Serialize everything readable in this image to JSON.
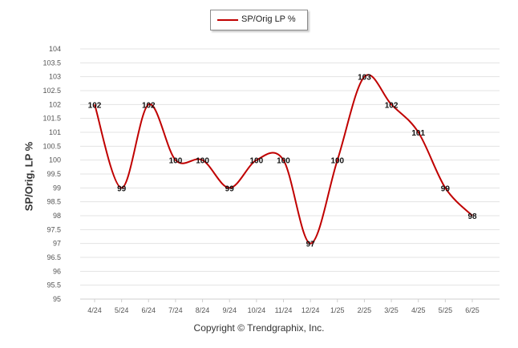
{
  "chart_data": {
    "type": "line",
    "categories": [
      "4/24",
      "5/24",
      "6/24",
      "7/24",
      "8/24",
      "9/24",
      "10/24",
      "11/24",
      "12/24",
      "1/25",
      "2/25",
      "3/25",
      "4/25",
      "5/25",
      "6/25"
    ],
    "series": [
      {
        "name": "SP/Orig LP %",
        "values": [
          102,
          99,
          102,
          100,
          100,
          99,
          100,
          100,
          97,
          100,
          103,
          102,
          101,
          99,
          98
        ],
        "data_labels": [
          "102",
          "99",
          "102",
          "100",
          "100",
          "99",
          "100",
          "100",
          "97",
          "100",
          "103",
          "102",
          "101",
          "99",
          "98"
        ]
      }
    ],
    "ylabel": "SP/Orig, LP %",
    "ylim": [
      95,
      104
    ],
    "yticks": [
      "95",
      "95.5",
      "96",
      "96.5",
      "97",
      "97.5",
      "98",
      "98.5",
      "99",
      "99.5",
      "100",
      "100.5",
      "101",
      "101.5",
      "102",
      "102.5",
      "103",
      "103.5",
      "104"
    ],
    "grid": true,
    "legend_position": "top-center",
    "line_color": "#c00000"
  },
  "legend": {
    "label": "SP/Orig LP %"
  },
  "copyright": "Copyright © Trendgraphix, Inc."
}
